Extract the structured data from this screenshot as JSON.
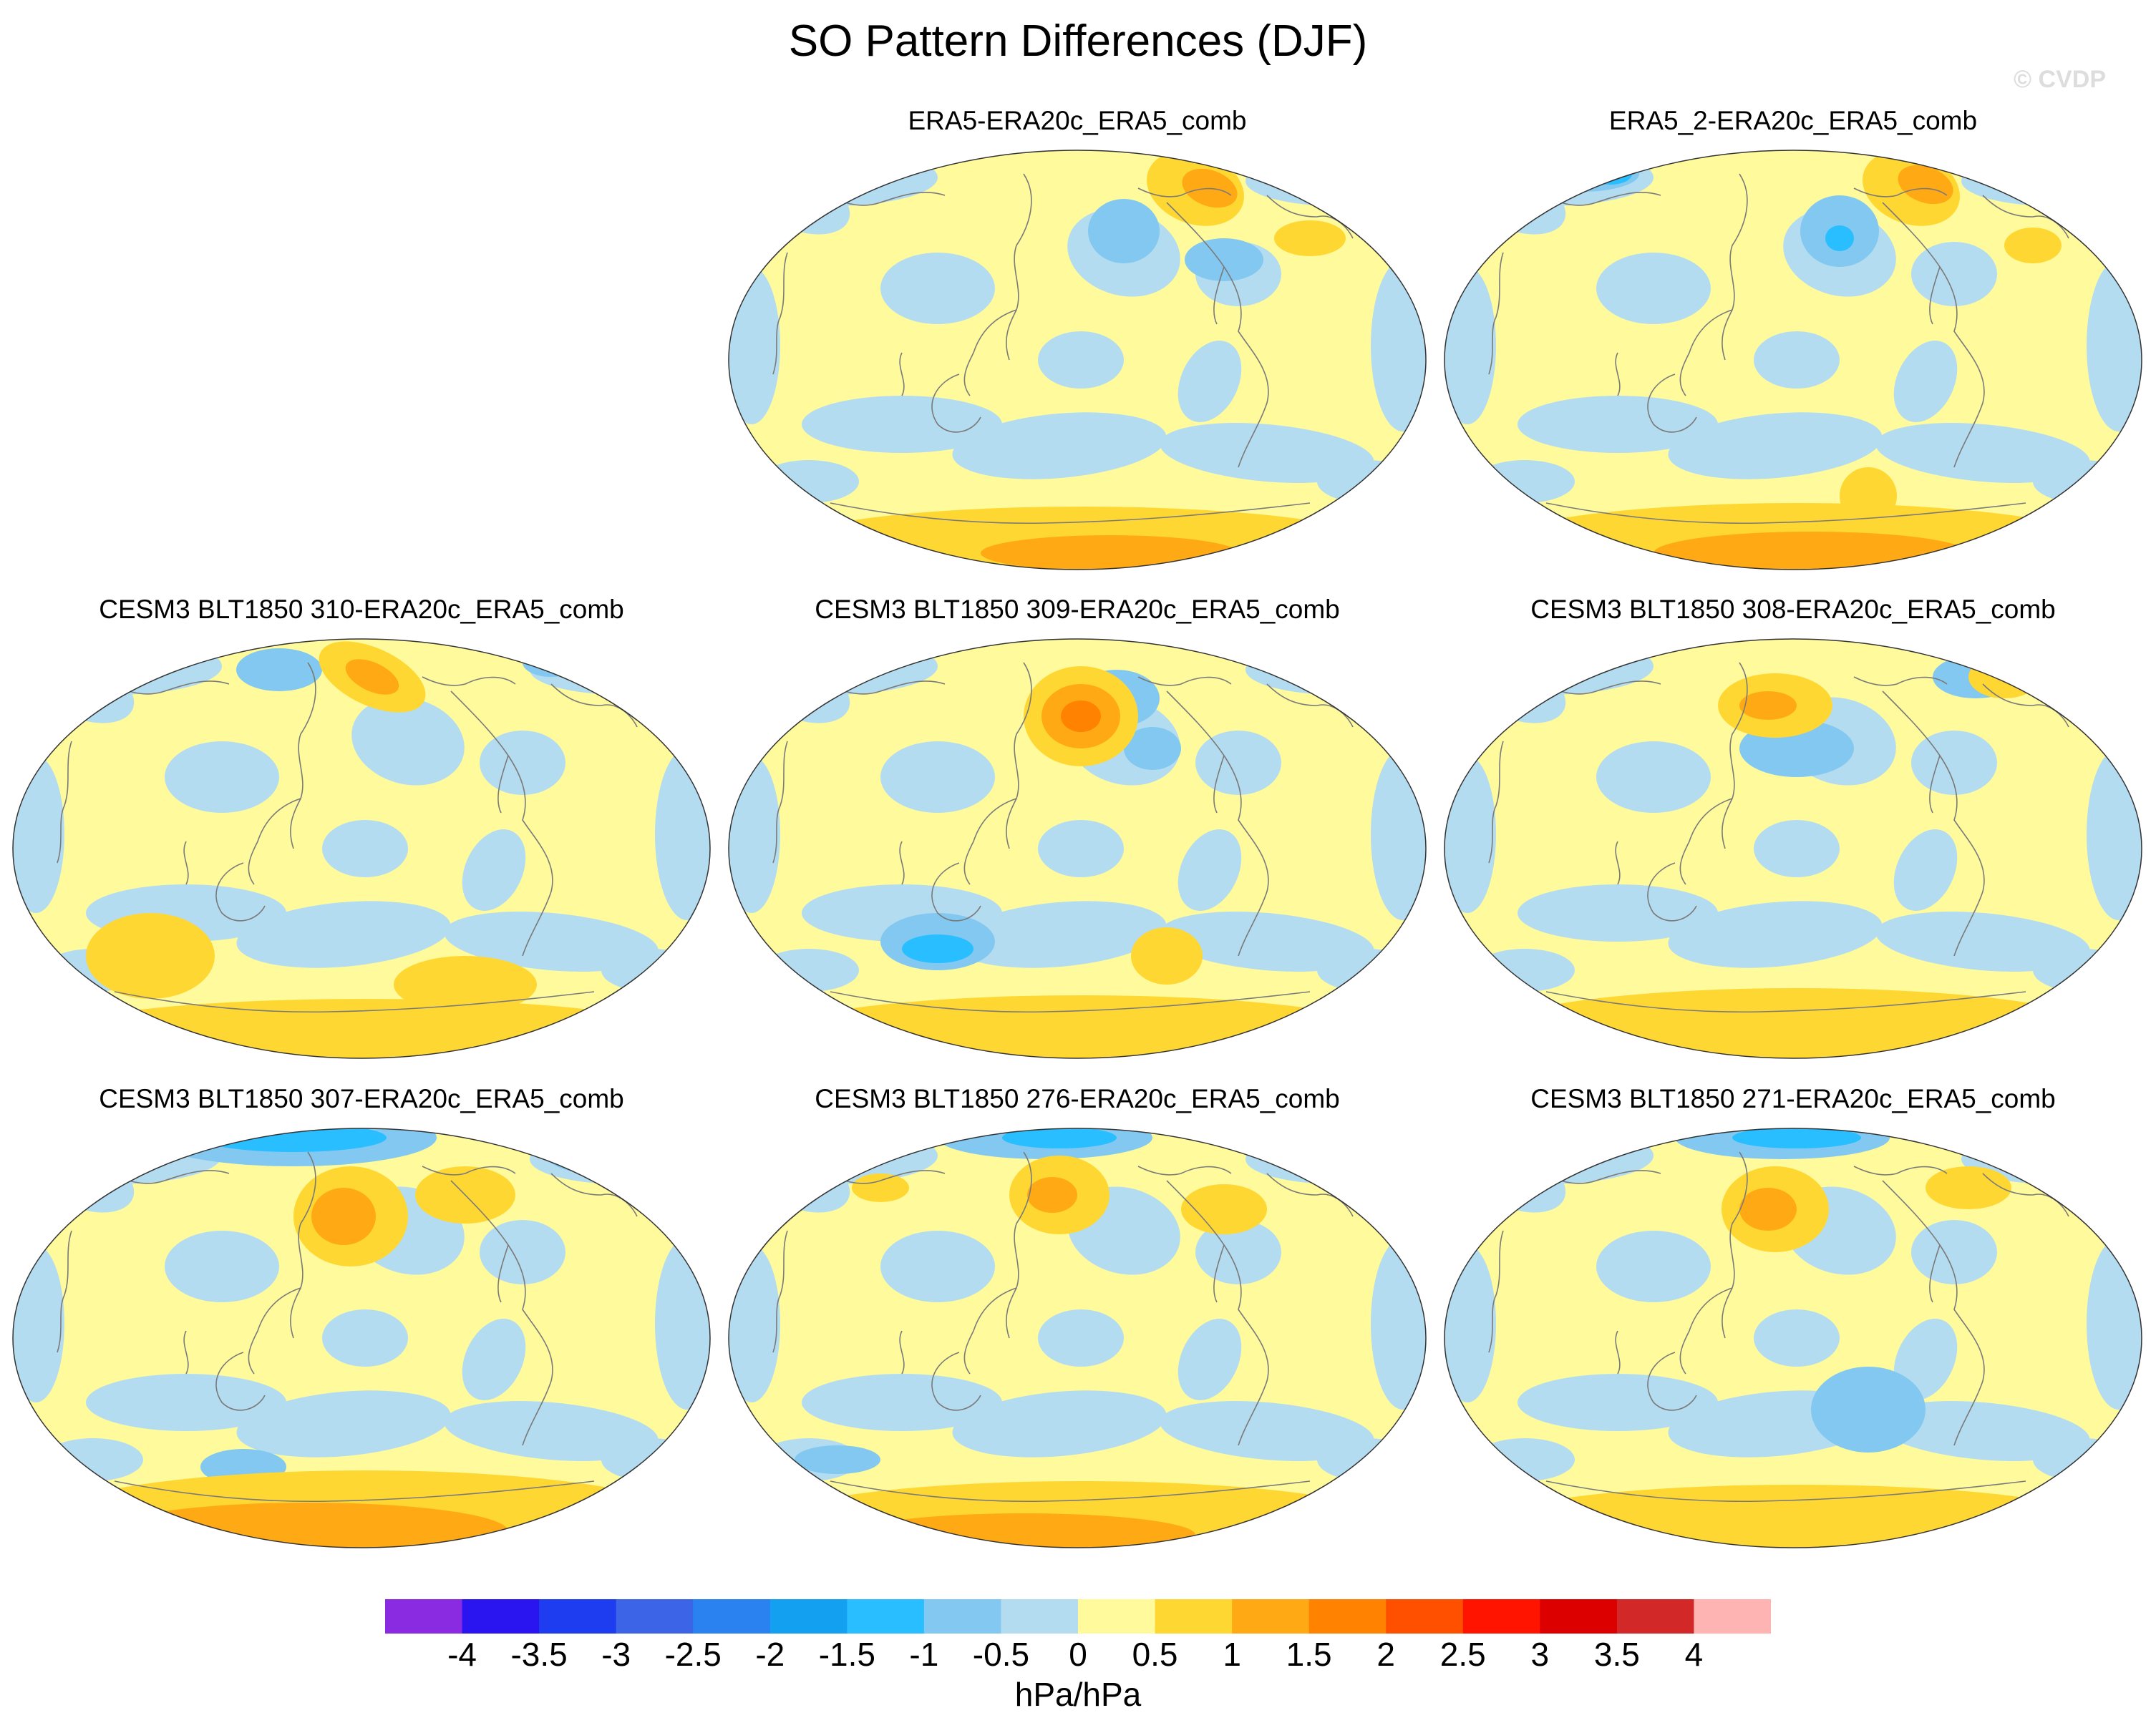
{
  "title": "SO Pattern Differences (DJF)",
  "watermark": "© CVDP",
  "panels": [
    {
      "label": "ERA5-ERA20c_ERA5_comb"
    },
    {
      "label": "ERA5_2-ERA20c_ERA5_comb"
    },
    {
      "label": "CESM3 BLT1850 310-ERA20c_ERA5_comb"
    },
    {
      "label": "CESM3 BLT1850 309-ERA20c_ERA5_comb"
    },
    {
      "label": "CESM3 BLT1850 308-ERA20c_ERA5_comb"
    },
    {
      "label": "CESM3 BLT1850 307-ERA20c_ERA5_comb"
    },
    {
      "label": "CESM3 BLT1850 276-ERA20c_ERA5_comb"
    },
    {
      "label": "CESM3 BLT1850 271-ERA20c_ERA5_comb"
    }
  ],
  "colorbar": {
    "labels": [
      "-4",
      "-3.5",
      "-3",
      "-2.5",
      "-2",
      "-1.5",
      "-1",
      "-0.5",
      "0",
      "0.5",
      "1",
      "1.5",
      "2",
      "2.5",
      "3",
      "3.5",
      "4"
    ],
    "colors": [
      "#8a2be2",
      "#2a14f0",
      "#1e3cf0",
      "#3c64e6",
      "#2a82f0",
      "#14a0f0",
      "#28beff",
      "#82c8f0",
      "#b4dcf0",
      "#fffa9c",
      "#ffd732",
      "#ffaa14",
      "#ff8200",
      "#ff5000",
      "#ff1400",
      "#dc0000",
      "#d22828",
      "#ffb4b4"
    ],
    "units": "hPa/hPa"
  },
  "palette": {
    "neutral_neg": "#b4dcf0",
    "neutral_pos": "#fffa9c",
    "neg1": "#82c8f0",
    "neg2": "#28beff",
    "pos1": "#ffd732",
    "pos2": "#ffaa14",
    "pos3": "#ff8200",
    "coast": "#7a7a7a",
    "outline": "#333333"
  }
}
